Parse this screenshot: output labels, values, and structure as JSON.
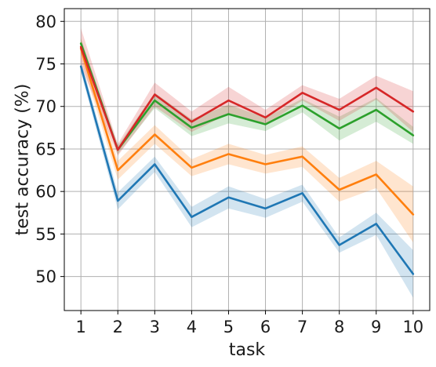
{
  "chart_data": {
    "type": "line",
    "title": "",
    "xlabel": "task",
    "ylabel": "test accuracy (%)",
    "x": [
      1,
      2,
      3,
      4,
      5,
      6,
      7,
      8,
      9,
      10
    ],
    "xticks": [
      "1",
      "2",
      "3",
      "4",
      "5",
      "6",
      "7",
      "8",
      "9",
      "10"
    ],
    "yticks": [
      "50",
      "55",
      "60",
      "65",
      "70",
      "75",
      "80"
    ],
    "xlim": [
      0.55,
      10.45
    ],
    "ylim": [
      46,
      81.5
    ],
    "grid": true,
    "legend": "none",
    "series": [
      {
        "color": "#1f77b4",
        "values": [
          74.7,
          58.9,
          63.2,
          57.0,
          59.3,
          58.0,
          59.8,
          53.7,
          56.2,
          50.3
        ],
        "lower": [
          74.0,
          57.9,
          62.3,
          55.8,
          58.0,
          56.9,
          58.8,
          52.8,
          54.9,
          47.5
        ],
        "upper": [
          75.4,
          59.9,
          64.1,
          58.2,
          60.6,
          59.1,
          60.8,
          54.6,
          57.5,
          53.1
        ]
      },
      {
        "color": "#ff7f0e",
        "values": [
          76.8,
          62.5,
          66.7,
          62.8,
          64.4,
          63.2,
          64.1,
          60.2,
          62.0,
          57.3
        ],
        "lower": [
          75.6,
          61.4,
          65.6,
          61.8,
          63.2,
          62.1,
          62.9,
          58.8,
          60.4,
          54.0
        ],
        "upper": [
          78.0,
          63.6,
          67.8,
          63.8,
          65.6,
          64.3,
          65.3,
          61.6,
          63.6,
          60.6
        ]
      },
      {
        "color": "#2ca02c",
        "values": [
          77.4,
          64.9,
          70.7,
          67.5,
          69.1,
          67.9,
          70.1,
          67.4,
          69.6,
          66.6
        ],
        "lower": [
          76.8,
          64.4,
          69.8,
          66.5,
          68.0,
          67.1,
          69.3,
          66.0,
          68.2,
          65.6
        ],
        "upper": [
          78.0,
          65.4,
          71.6,
          68.5,
          70.2,
          68.7,
          70.9,
          68.8,
          71.0,
          67.6
        ]
      },
      {
        "color": "#d62728",
        "values": [
          77.0,
          64.9,
          71.4,
          68.2,
          70.7,
          68.7,
          71.6,
          69.6,
          72.2,
          69.4
        ],
        "lower": [
          74.8,
          64.2,
          70.0,
          67.0,
          69.1,
          67.8,
          70.7,
          68.3,
          70.8,
          67.0
        ],
        "upper": [
          79.2,
          65.6,
          72.8,
          69.4,
          72.3,
          69.6,
          72.5,
          70.9,
          73.6,
          71.8
        ]
      }
    ]
  }
}
